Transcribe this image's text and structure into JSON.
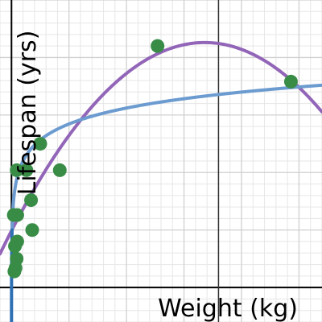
{
  "chart_data": {
    "type": "scatter",
    "xlabel": "Weight (kg)",
    "ylabel": "Lifespan (yrs)",
    "xlim": [
      -1,
      27
    ],
    "ylim": [
      -3,
      25
    ],
    "grid": true,
    "colors": {
      "background": "#ffffff",
      "grid_minor": "#e6e6e6",
      "grid_major": "#d0d0d0",
      "axis": "#000000",
      "points": "#388c46",
      "quadratic_fit": "#9265b8",
      "log_fit": "#6c9bd0",
      "left_curve": "#2d70b3"
    },
    "points": [
      [
        0.25,
        1.4
      ],
      [
        0.35,
        1.7
      ],
      [
        0.45,
        2.5
      ],
      [
        0.3,
        3.6
      ],
      [
        0.5,
        4.0
      ],
      [
        0.2,
        6.3
      ],
      [
        0.5,
        6.3
      ],
      [
        1.8,
        5.0
      ],
      [
        1.7,
        7.6
      ],
      [
        0.45,
        10.2
      ],
      [
        1.3,
        10.2
      ],
      [
        2.5,
        12.5
      ],
      [
        4.2,
        10.2
      ],
      [
        12.7,
        21.0
      ],
      [
        24.3,
        17.9
      ]
    ],
    "series": [
      {
        "type": "points"
      },
      {
        "type": "curve",
        "form": "quadratic",
        "vertex": [
          16.8,
          21.3
        ],
        "a": -0.058
      },
      {
        "type": "curve",
        "form": "logarithmic",
        "a": 11.0,
        "b": 2.0
      }
    ]
  }
}
